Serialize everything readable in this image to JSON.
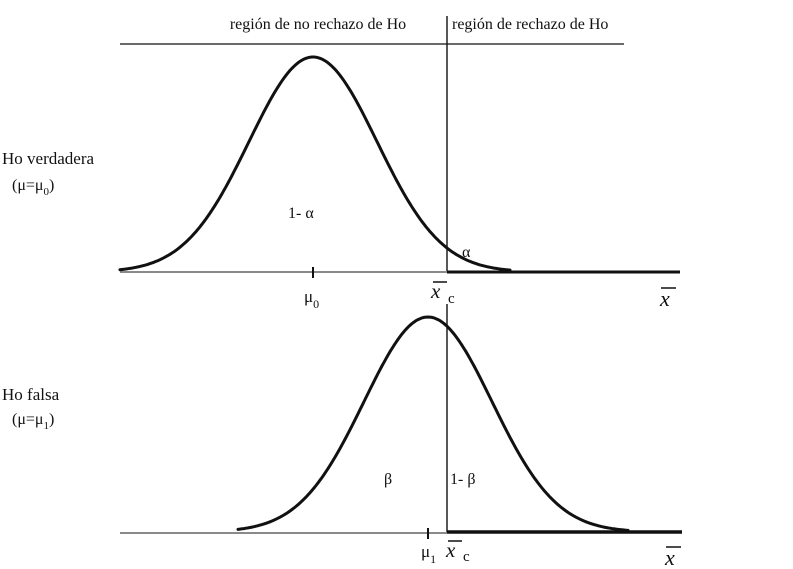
{
  "regions": {
    "no_rejection": "región de no rechazo de Ho",
    "rejection": "región de rechazo de Ho"
  },
  "top_panel": {
    "case_label": "Ho verdadera",
    "case_condition_prefix": "(μ=μ",
    "case_condition_sub": "0",
    "case_condition_suffix": ")",
    "area_inside": "1- α",
    "area_tail": "α",
    "mean_symbol": "μ",
    "mean_sub": "0",
    "critical_symbol": "x",
    "critical_sub": "c",
    "axis_symbol": "x"
  },
  "bottom_panel": {
    "case_label": "Ho falsa",
    "case_condition_prefix": "(μ=μ",
    "case_condition_sub": "1",
    "case_condition_suffix": ")",
    "area_left": "β",
    "area_right": "1- β",
    "mean_symbol": "μ",
    "mean_sub": "1",
    "critical_symbol": "x",
    "critical_sub": "c",
    "axis_symbol": "x"
  },
  "colors": {
    "curve": "#111111",
    "axis": "#8a8a8a",
    "text": "#111111"
  }
}
